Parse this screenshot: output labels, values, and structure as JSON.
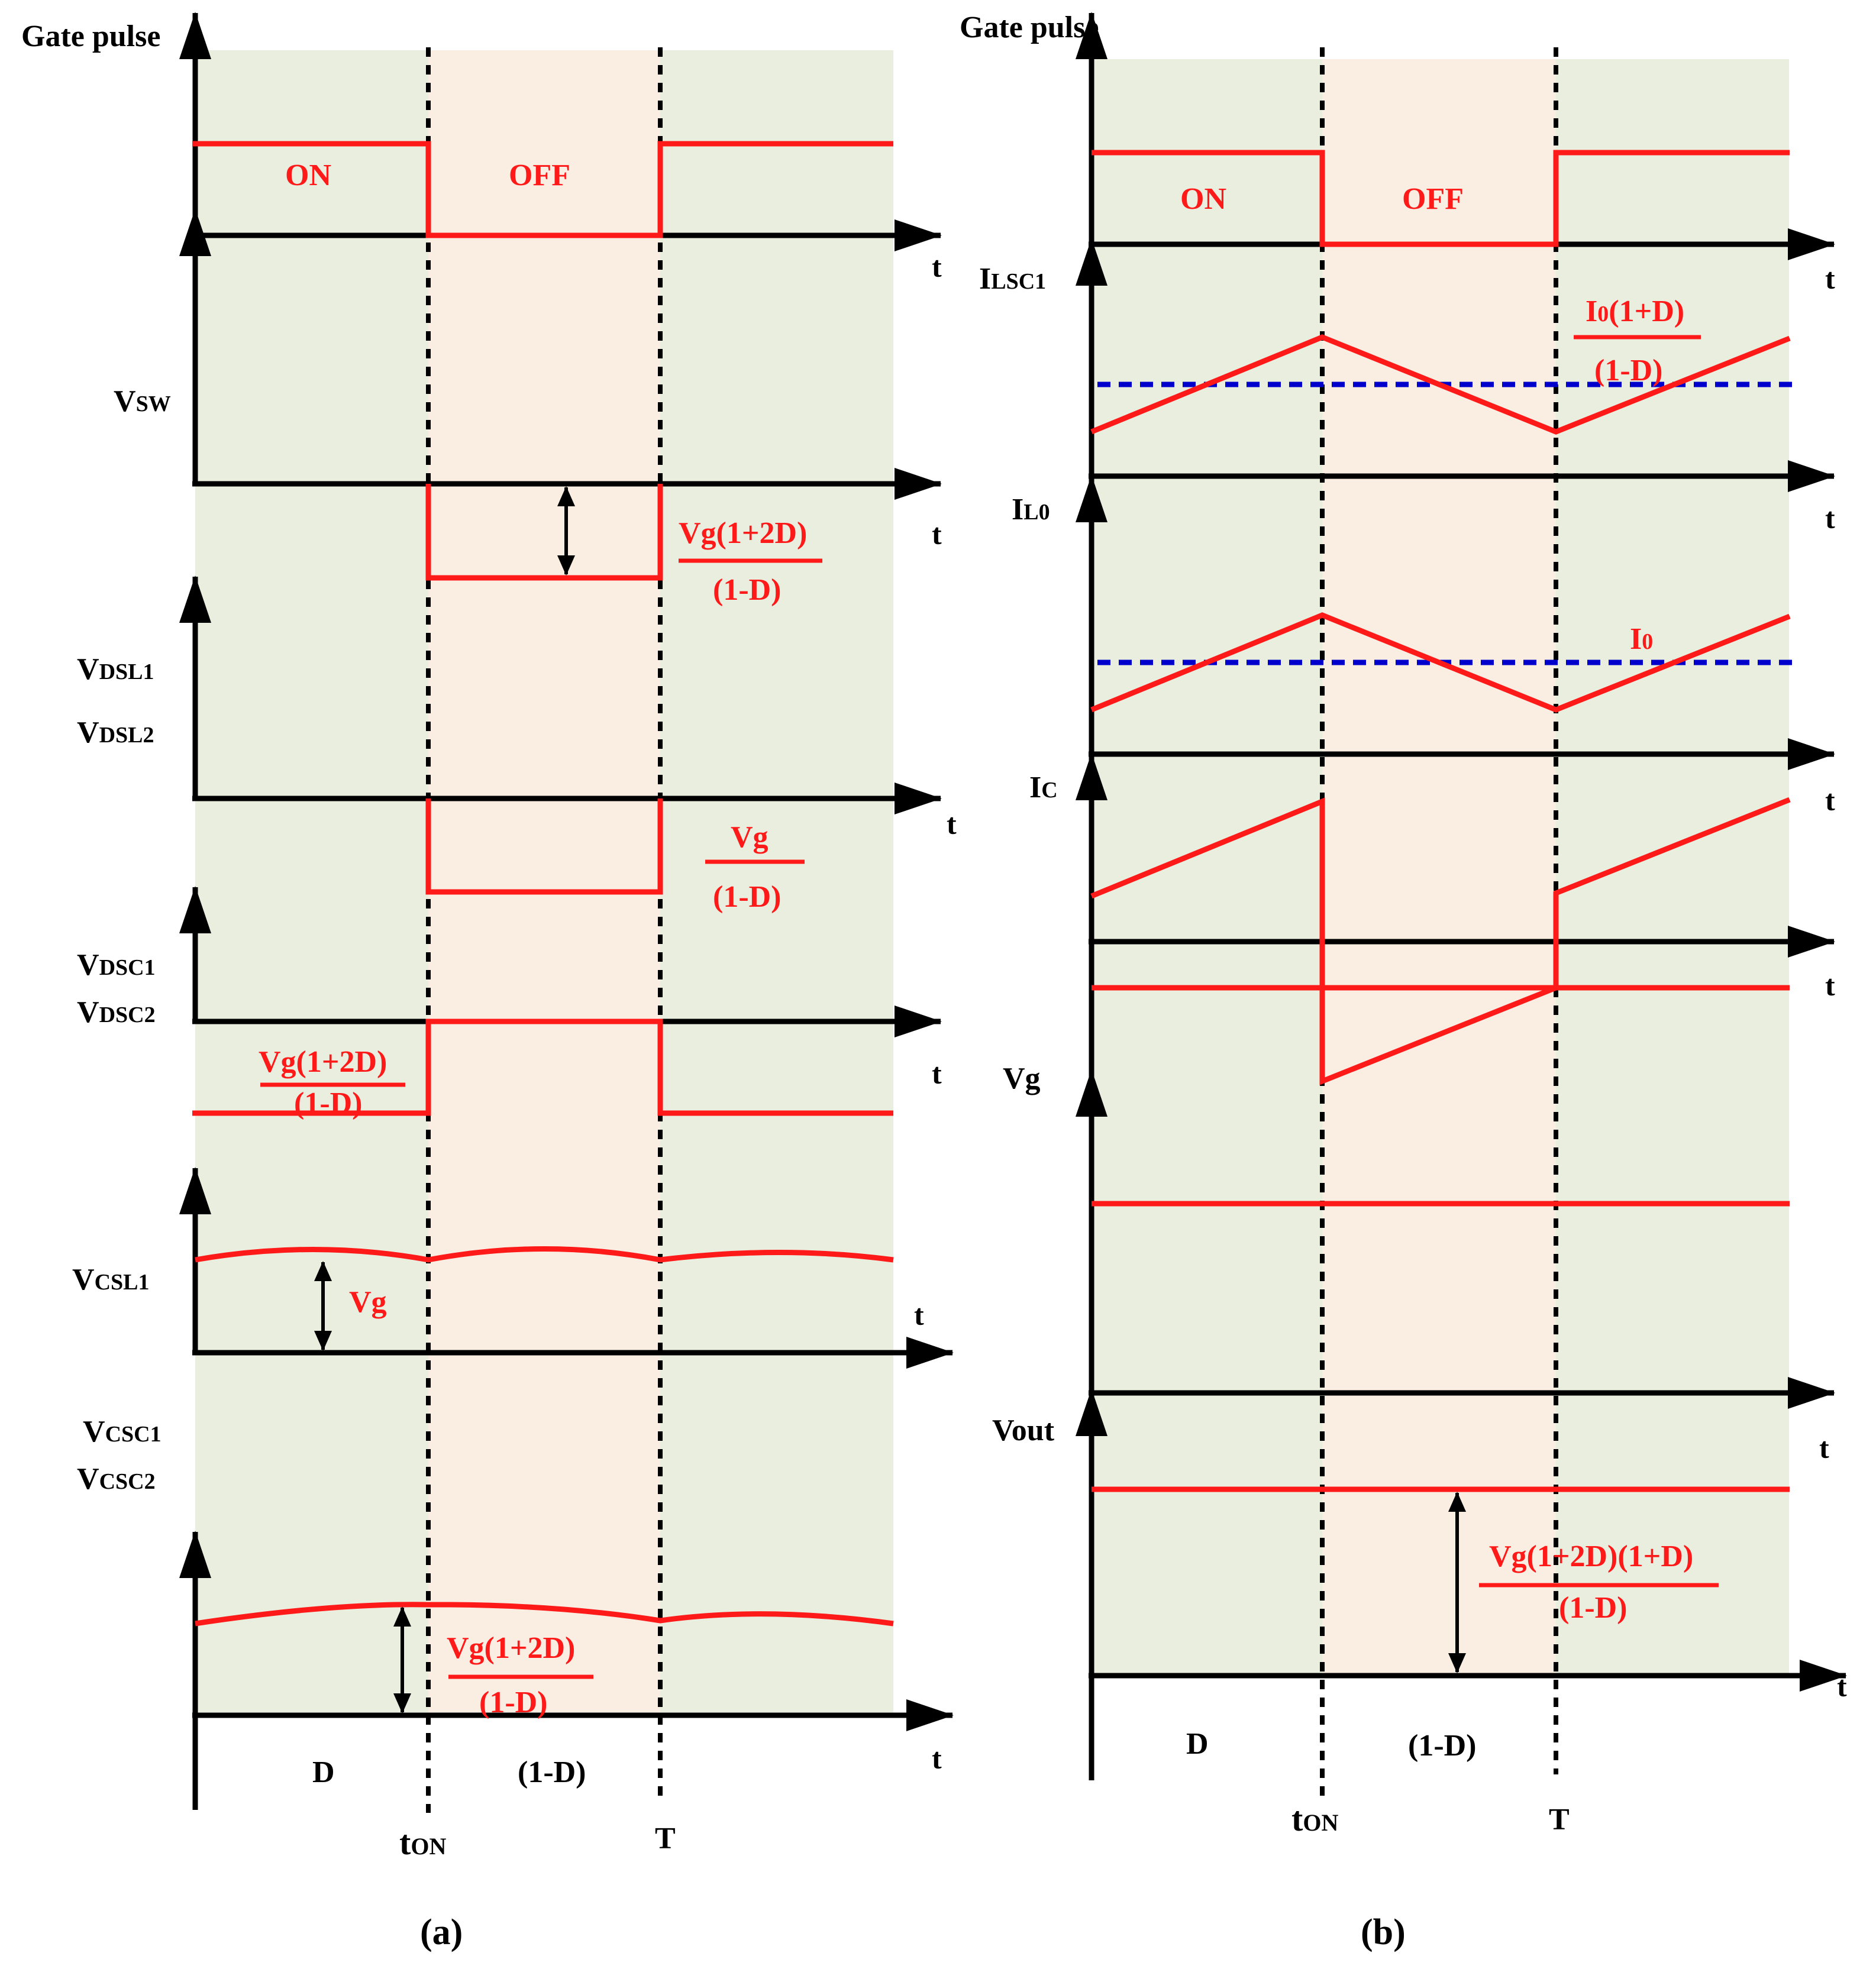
{
  "colors": {
    "on_region": "#e9eedf",
    "off_region": "#faeee3",
    "waveform": "#ff1a1a",
    "reference": "#0000cc",
    "axis": "#000000"
  },
  "panel_a": {
    "caption": "(a)",
    "gate_pulse": "Gate pulse",
    "on": "ON",
    "off": "OFF",
    "vsw_main": "V",
    "vsw_sub": "SW",
    "vdsl1_main": "V",
    "vdsl1_sub": "DSL1",
    "vdsl2_main": "V",
    "vdsl2_sub": "DSL2",
    "vdsc1_main": "V",
    "vdsc1_sub": "DSC1",
    "vdsc2_main": "V",
    "vdsc2_sub": "DSC2",
    "vcsl1_main": "V",
    "vcsl1_sub": "CSL1",
    "vcsc1_main": "V",
    "vcsc1_sub": "CSC1",
    "vcsc2_main": "V",
    "vcsc2_sub": "CSC2",
    "axis_t": "t",
    "vsw_num": "Vg(1+2D)",
    "vsw_den": "(1-D)",
    "vdsl_num": "Vg",
    "vdsl_den": "(1-D)",
    "vdsc_num": "Vg(1+2D)",
    "vdsc_den": "(1-D)",
    "vcsl_label": "Vg",
    "vcsc_num": "Vg(1+2D)",
    "vcsc_den": "(1-D)",
    "d_label": "D",
    "one_minus_d": "(1-D)",
    "ton_main": "t",
    "ton_sub": "ON",
    "period": "T"
  },
  "panel_b": {
    "caption": "(b)",
    "gate_pulse": "Gate pulse",
    "on": "ON",
    "off": "OFF",
    "ilsc1_main": "I",
    "ilsc1_sub": "LSC1",
    "il0_main": "I",
    "il0_sub": "L0",
    "ic_main": "I",
    "ic_sub": "C",
    "vg_label": "Vg",
    "vout_label": "Vout",
    "axis_t": "t",
    "ilsc_num": "I0(1+D)",
    "ilsc_num_main": "I",
    "ilsc_num_sub": "0",
    "ilsc_num_rest": "(1+D)",
    "ilsc_den": "(1-D)",
    "io_label": "I0",
    "io_main": "I",
    "io_sub": "0",
    "vout_num": "Vg(1+2D)(1+D)",
    "vout_den": "(1-D)",
    "d_label": "D",
    "one_minus_d": "(1-D)",
    "ton_main": "t",
    "ton_sub": "ON",
    "period": "T"
  }
}
